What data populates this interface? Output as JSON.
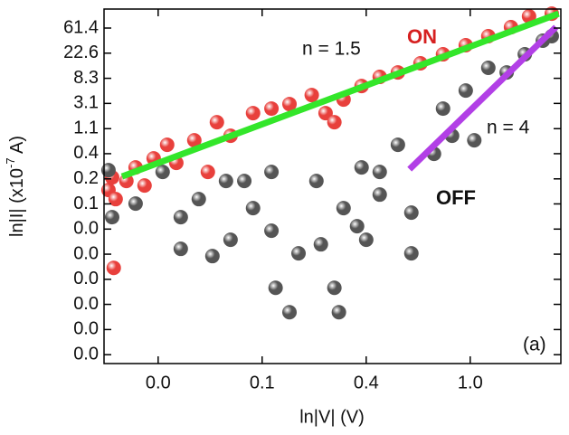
{
  "chart_data": {
    "type": "scatter",
    "x_label": "ln|V| (V)",
    "y_label": [
      "ln|I| (x10",
      "-7",
      " A)"
    ],
    "xlog": true,
    "ylog": true,
    "xlim": [
      0.0296,
      2.39
    ],
    "ylim": [
      9.77e-05,
      130.8
    ],
    "xticks": [
      {
        "value": 0.0498,
        "label": "0.0"
      },
      {
        "value": 0.1353,
        "label": "0.1"
      },
      {
        "value": 0.3679,
        "label": "0.4"
      },
      {
        "value": 1.0,
        "label": "1.0"
      }
    ],
    "yticks": [
      {
        "value": 61.4,
        "label": "61.4"
      },
      {
        "value": 22.6,
        "label": "22.6"
      },
      {
        "value": 8.31,
        "label": "8.3"
      },
      {
        "value": 3.06,
        "label": "3.1"
      },
      {
        "value": 1.12,
        "label": "1.1"
      },
      {
        "value": 0.414,
        "label": "0.4"
      },
      {
        "value": 0.152,
        "label": "0.2"
      },
      {
        "value": 0.0561,
        "label": "0.1"
      },
      {
        "value": 0.0206,
        "label": "0.0"
      },
      {
        "value": 0.00759,
        "label": "0.0"
      },
      {
        "value": 0.00279,
        "label": "0.0"
      },
      {
        "value": 0.00103,
        "label": "0.0"
      },
      {
        "value": 0.000378,
        "label": "0.0"
      },
      {
        "value": 0.000139,
        "label": "0.0"
      }
    ],
    "series": [
      {
        "color": "#e8403c",
        "x": [
          0.0309,
          0.032,
          0.0331,
          0.0325,
          0.0367,
          0.0401,
          0.0437,
          0.0477,
          0.0543,
          0.0593,
          0.0705,
          0.0876,
          0.0999,
          0.124,
          0.148,
          0.176,
          0.218,
          0.249,
          0.296,
          0.352,
          0.419,
          0.499,
          0.62,
          0.77,
          0.958,
          1.19,
          1.48,
          1.76,
          2.19,
          0.0803,
          0.271
        ],
        "values": [
          0.0974,
          0.161,
          0.0679,
          0.0044,
          0.1396,
          0.2396,
          0.1166,
          0.343,
          0.59,
          0.287,
          0.706,
          1.45,
          0.845,
          2.08,
          2.49,
          2.98,
          4.27,
          2.08,
          3.57,
          6.12,
          8.78,
          10.5,
          15.1,
          21.6,
          31.0,
          44.4,
          63.6,
          98.0,
          109,
          0.2,
          1.45
        ]
      },
      {
        "color": "#555555",
        "x": [
          0.0309,
          0.032,
          0.0401,
          0.052,
          0.0619,
          0.0619,
          0.0839,
          0.0736,
          0.0956,
          0.0999,
          0.124,
          0.148,
          0.148,
          0.154,
          0.176,
          0.192,
          0.228,
          0.238,
          0.271,
          0.283,
          0.296,
          0.337,
          0.352,
          0.368,
          0.419,
          0.499,
          0.568,
          0.568,
          0.706,
          0.77,
          0.84,
          0.958,
          1.04,
          1.19,
          1.42,
          1.69,
          2.01,
          2.19,
          0.114,
          0.419
        ],
        "values": [
          0.215,
          0.0331,
          0.0568,
          0.2,
          0.0331,
          0.00938,
          0.00703,
          0.0679,
          0.1396,
          0.01345,
          0.0474,
          0.2,
          0.0193,
          0.00199,
          0.000753,
          0.00784,
          0.1396,
          0.01123,
          0.00199,
          0.000753,
          0.0474,
          0.0231,
          0.2396,
          0.01345,
          0.0813,
          0.59,
          0.0396,
          0.00784,
          0.411,
          2.49,
          0.845,
          5.11,
          0.706,
          12.6,
          10.5,
          21.6,
          37.1,
          44.4,
          0.1396,
          0.2
        ]
      }
    ],
    "fit_lines": [
      {
        "color": "#33e62a",
        "x": [
          0.0352,
          2.34
        ],
        "values": [
          0.167,
          109
        ]
      },
      {
        "color": "#b23fe6",
        "x": [
          0.558,
          2.28
        ],
        "values": [
          0.223,
          63.6
        ]
      }
    ],
    "annotations": [
      "ON",
      "OFF",
      "n = 1.5",
      "n = 4",
      "(a)"
    ]
  }
}
